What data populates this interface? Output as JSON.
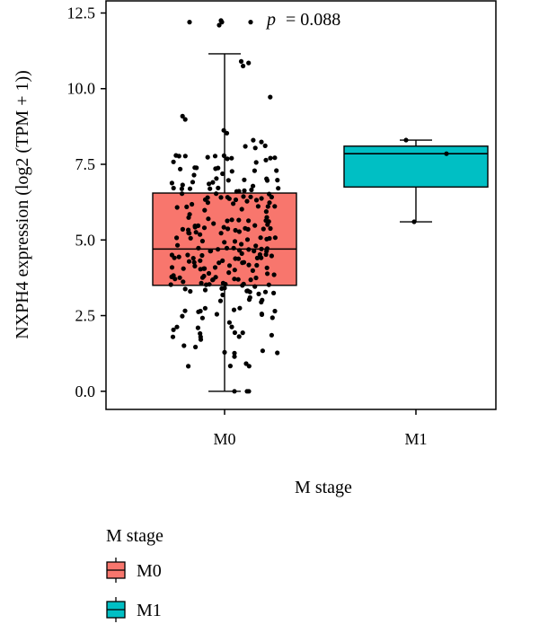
{
  "chart_data": {
    "type": "box",
    "xlabel": "M stage",
    "ylabel": "NXPH4 expression (log2 (TPM + 1))",
    "categories": [
      "M0",
      "M1"
    ],
    "ylim": [
      -0.6,
      12.9
    ],
    "yticks": [
      0.0,
      2.5,
      5.0,
      7.5,
      10.0,
      12.5
    ],
    "ytick_labels": [
      "0.0",
      "2.5",
      "5.0",
      "7.5",
      "10.0",
      "12.5"
    ],
    "annotation": {
      "p_symbol": "p",
      "text": "= 0.088"
    },
    "colors": {
      "M0": "#F8766D",
      "M1": "#00BFC4"
    },
    "series": [
      {
        "name": "M0",
        "whisker_low": 0.0,
        "q1": 3.5,
        "median": 4.7,
        "q3": 6.55,
        "whisker_high": 11.15,
        "outliers": [
          12.2,
          12.1,
          12.25,
          12.2,
          12.2
        ],
        "points_summary": "approximately 260 jittered points ranging 0.0–12.3"
      },
      {
        "name": "M1",
        "whisker_low": 5.6,
        "q1": 6.75,
        "median": 7.85,
        "q3": 8.1,
        "whisker_high": 8.3,
        "points": [
          5.6,
          7.85,
          8.3
        ]
      }
    ],
    "legend": {
      "title": "M stage",
      "entries": [
        "M0",
        "M1"
      ],
      "position": "bottom-left"
    }
  }
}
